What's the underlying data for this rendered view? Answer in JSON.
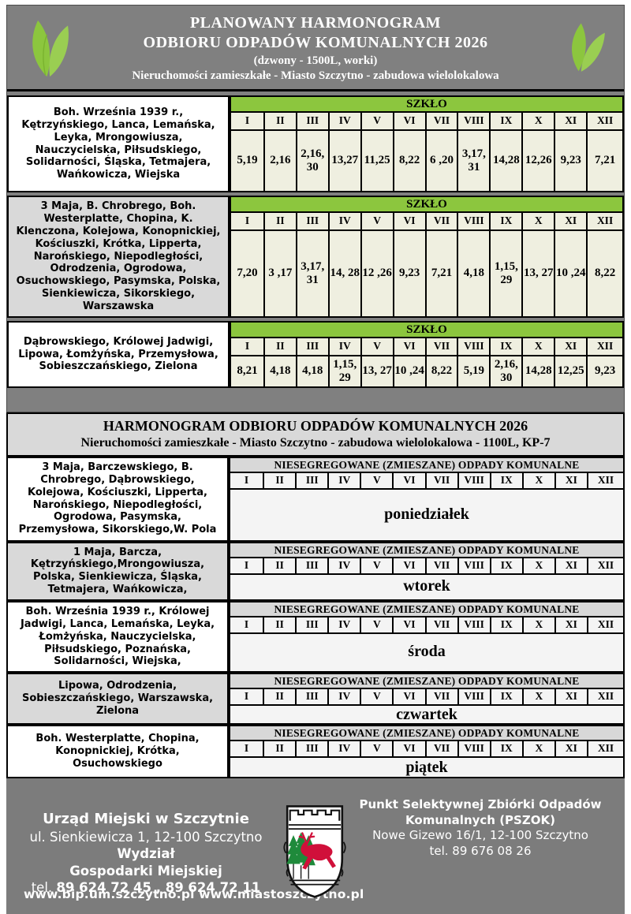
{
  "colors": {
    "accent_green": "#8CC63E",
    "panel_gray": "#808080",
    "light_gray": "#D9D9D9",
    "cream_cell": "#EFEFE0",
    "footer_gray": "#7C7C7C"
  },
  "header": {
    "title_line1": "PLANOWANY HARMONOGRAM",
    "title_line2": "ODBIORU ODPADÓW KOMUNALNYCH 2026",
    "subtitle1": "(dzwony - 1500L, worki)",
    "subtitle2": "Nieruchomości zamieszkałe - Miasto Szczytno - zabudowa wielolokalowa"
  },
  "months": [
    "I",
    "II",
    "III",
    "IV",
    "V",
    "VI",
    "VII",
    "VIII",
    "IX",
    "X",
    "XI",
    "XII"
  ],
  "glass_section": {
    "waste_type": "SZKŁO",
    "rows": [
      {
        "streets": "Boh. Września 1939 r., Kętrzyńskiego, Lanca, Lemańska, Leyka, Mrongowiusza, Nauczycielska, Piłsudskiego, Solidarności, Śląska, Tetmajera, Wańkowicza, Wiejska",
        "values": [
          "5,19",
          "2,16",
          "2,16,\n30",
          "13,27",
          "11,25",
          "8,22",
          "6 ,20",
          "3,17,\n31",
          "14,28",
          "12,26",
          "9,23",
          "7,21"
        ]
      },
      {
        "streets": "3 Maja, B. Chrobrego, Boh. Westerplatte, Chopina, K. Klenczona, Kolejowa, Konopnickiej, Kościuszki, Krótka, Lipperta, Narońskiego, Niepodległości, Odrodzenia, Ogrodowa, Osuchowskiego, Pasymska, Polska, Sienkiewicza,  Sikorskiego, Warszawska",
        "values": [
          "7,20",
          "3 ,17",
          "3,17,\n31",
          "14, 28",
          "12 ,26",
          "9,23",
          "7,21",
          "4,18",
          "1,15,\n29",
          "13, 27",
          "10 ,24",
          "8,22"
        ]
      },
      {
        "streets": "Dąbrowskiego, Królowej Jadwigi, Lipowa, Łomżyńska, Przemysłowa, Sobieszczańskiego, Zielona",
        "values": [
          "8,21",
          "4,18",
          "4,18",
          "1,15,\n29",
          "13, 27",
          "10 ,24",
          "8,22",
          "5,19",
          "2,16,\n30",
          "14,28",
          "12,25",
          "9,23"
        ]
      }
    ]
  },
  "mixed_section": {
    "title": "HARMONOGRAM ODBIORU ODPADÓW KOMUNALNYCH 2026",
    "subtitle": "Nieruchomości zamieszkałe - Miasto Szczytno - zabudowa wielolokalowa - 1100L, KP-7",
    "waste_type": "NIESEGREGOWANE (ZMIESZANE) ODPADY KOMUNALNE",
    "rows": [
      {
        "streets": "3 Maja, Barczewskiego, B. Chrobrego,  Dąbrowskiego, Kolejowa, Kościuszki, Lipperta, Narońskiego, Niepodległości,  Ogrodowa, Pasymska, Przemysłowa, Sikorskiego,W. Pola",
        "day": "poniedziałek"
      },
      {
        "streets": "1 Maja, Barcza, Kętrzyńskiego,Mrongowiusza, Polska, Sienkiewicza, Śląska,  Tetmajera, Wańkowicza,",
        "day": "wtorek"
      },
      {
        "streets": "Boh. Września 1939 r., Królowej Jadwigi, Lanca, Lemańska, Leyka, Łomżyńska, Nauczycielska, Piłsudskiego, Poznańska, Solidarności, Wiejska,",
        "day": "środa"
      },
      {
        "streets": "Lipowa,  Odrodzenia, Sobieszczańskiego, Warszawska, Zielona",
        "day": "czwartek"
      },
      {
        "streets": "Boh. Westerplatte, Chopina, Konopnickiej,  Krótka, Osuchowskiego",
        "day": "piątek"
      }
    ]
  },
  "footer": {
    "office_name": "Urząd Miejski w Szczytnie",
    "office_address_regular": "ul. Sienkiewicza 1, 12-100 Szczytno ",
    "office_address_bold": "Wydział",
    "office_dept": "Gospodarki Miejskiej",
    "office_tel_prefix": "tel. ",
    "office_tel_numbers": "89 624 72 45 ,  89 624 72 11",
    "websites": "www.bip.um.szczytno.pl  www.miastoszczytno.pl",
    "pszok_line1": "Punkt Selektywnej Zbiórki Odpadów",
    "pszok_line2": "Komunalnych (PSZOK)",
    "pszok_line3": "Nowe Gizewo 16/1, 12-100 Szczytno",
    "pszok_line4": "tel. 89 676 08 26"
  }
}
